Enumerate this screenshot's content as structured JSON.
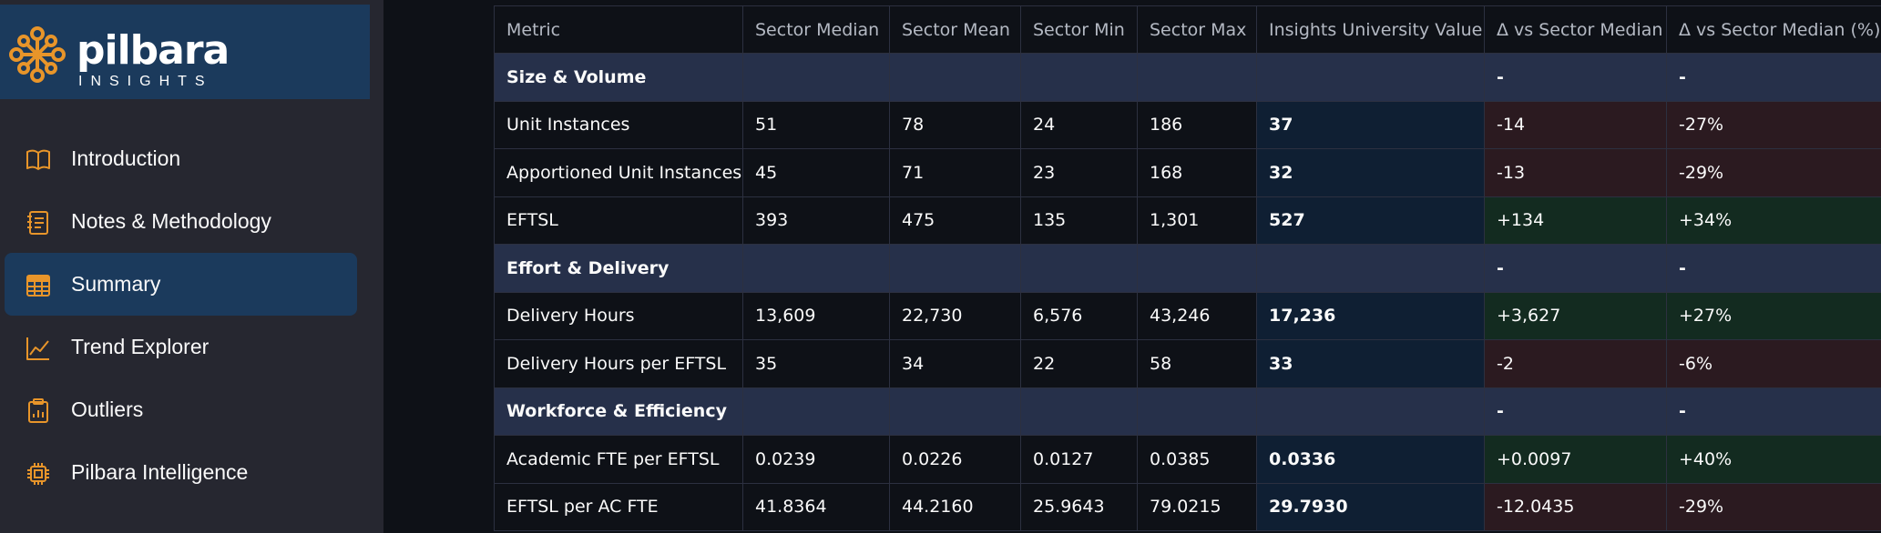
{
  "brand": {
    "name": "pilbara",
    "sub": "INSIGHTS",
    "accent": "#e8952a"
  },
  "nav": [
    {
      "label": "Introduction",
      "icon": "book-icon",
      "active": false
    },
    {
      "label": "Notes & Methodology",
      "icon": "notebook-icon",
      "active": false
    },
    {
      "label": "Summary",
      "icon": "table-icon",
      "active": true
    },
    {
      "label": "Trend Explorer",
      "icon": "line-chart-icon",
      "active": false
    },
    {
      "label": "Outliers",
      "icon": "clipboard-chart-icon",
      "active": false
    },
    {
      "label": "Pilbara Intelligence",
      "icon": "chip-icon",
      "active": false
    }
  ],
  "table": {
    "headers": [
      "Metric",
      "Sector Median",
      "Sector Mean",
      "Sector Min",
      "Sector Max",
      "Insights University Value",
      "Δ vs Sector Median",
      "Δ vs Sector Median (%)"
    ],
    "rows": [
      {
        "type": "section",
        "cells": [
          "Size & Volume",
          "",
          "",
          "",
          "",
          "",
          "-",
          "-"
        ]
      },
      {
        "type": "data",
        "tone": "neg",
        "cells": [
          "Unit Instances",
          "51",
          "78",
          "24",
          "186",
          "37",
          "-14",
          "-27%"
        ]
      },
      {
        "type": "data",
        "tone": "neg",
        "cells": [
          "Apportioned Unit Instances",
          "45",
          "71",
          "23",
          "168",
          "32",
          "-13",
          "-29%"
        ]
      },
      {
        "type": "data",
        "tone": "pos",
        "cells": [
          "EFTSL",
          "393",
          "475",
          "135",
          "1,301",
          "527",
          "+134",
          "+34%"
        ]
      },
      {
        "type": "section",
        "cells": [
          "Effort & Delivery",
          "",
          "",
          "",
          "",
          "",
          "-",
          "-"
        ]
      },
      {
        "type": "data",
        "tone": "pos",
        "cells": [
          "Delivery Hours",
          "13,609",
          "22,730",
          "6,576",
          "43,246",
          "17,236",
          "+3,627",
          "+27%"
        ]
      },
      {
        "type": "data",
        "tone": "neg",
        "cells": [
          "Delivery Hours per EFTSL",
          "35",
          "34",
          "22",
          "58",
          "33",
          "-2",
          "-6%"
        ]
      },
      {
        "type": "section",
        "cells": [
          "Workforce & Efficiency",
          "",
          "",
          "",
          "",
          "",
          "-",
          "-"
        ]
      },
      {
        "type": "data",
        "tone": "pos",
        "cells": [
          "Academic FTE per EFTSL",
          "0.0239",
          "0.0226",
          "0.0127",
          "0.0385",
          "0.0336",
          "+0.0097",
          "+40%"
        ]
      },
      {
        "type": "data",
        "tone": "neg",
        "cells": [
          "EFTSL per AC FTE",
          "41.8364",
          "44.2160",
          "25.9643",
          "79.0215",
          "29.7930",
          "-12.0435",
          "-29%"
        ]
      }
    ]
  }
}
